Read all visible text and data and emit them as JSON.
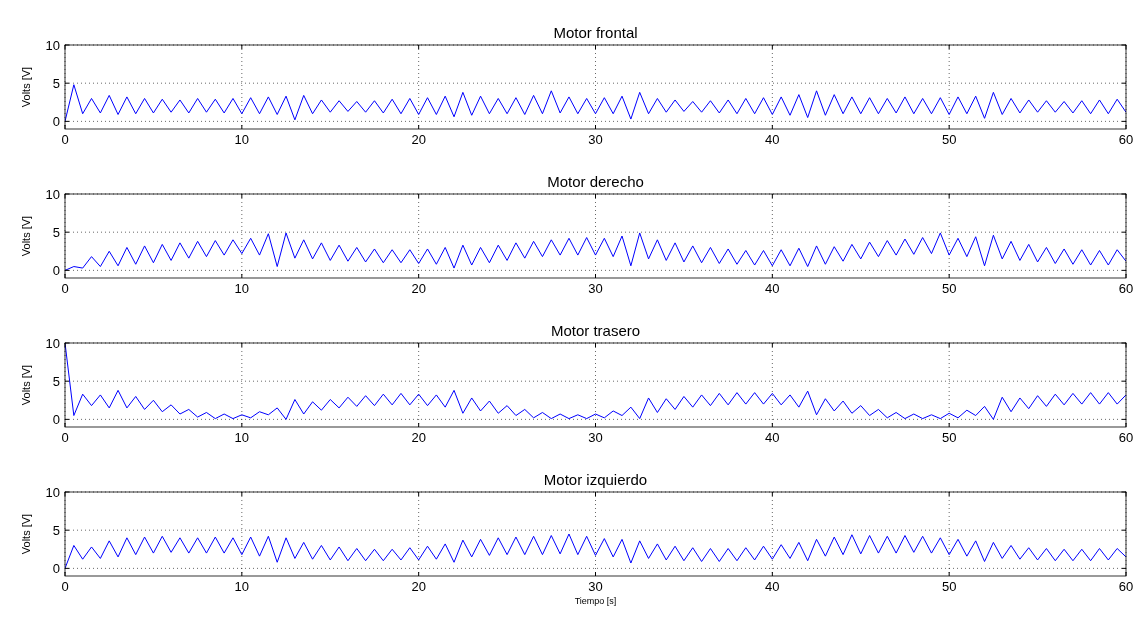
{
  "chart_data": [
    {
      "type": "line",
      "title": "Motor frontal",
      "ylabel": "Volts [V]",
      "xlim": [
        0,
        60
      ],
      "xticks": [
        0,
        10,
        20,
        30,
        40,
        50,
        60
      ],
      "ylim": [
        -1,
        10
      ],
      "yticks": [
        0,
        5,
        10
      ],
      "grid": true,
      "line_style": "solid",
      "x": [
        0,
        0.5,
        1,
        1.5,
        2,
        2.5,
        3,
        3.5,
        4,
        4.5,
        5,
        5.5,
        6,
        6.5,
        7,
        7.5,
        8,
        8.5,
        9,
        9.5,
        10,
        10.5,
        11,
        11.5,
        12,
        12.5,
        13,
        13.5,
        14,
        14.5,
        15,
        15.5,
        16,
        16.5,
        17,
        17.5,
        18,
        18.5,
        19,
        19.5,
        20,
        20.5,
        21,
        21.5,
        22,
        22.5,
        23,
        23.5,
        24,
        24.5,
        25,
        25.5,
        26,
        26.5,
        27,
        27.5,
        28,
        28.5,
        29,
        29.5,
        30,
        30.5,
        31,
        31.5,
        32,
        32.5,
        33,
        33.5,
        34,
        34.5,
        35,
        35.5,
        36,
        36.5,
        37,
        37.5,
        38,
        38.5,
        39,
        39.5,
        40,
        40.5,
        41,
        41.5,
        42,
        42.5,
        43,
        43.5,
        44,
        44.5,
        45,
        45.5,
        46,
        46.5,
        47,
        47.5,
        48,
        48.5,
        49,
        49.5,
        50,
        50.5,
        51,
        51.5,
        52,
        52.5,
        53,
        53.5,
        54,
        54.5,
        55,
        55.5,
        56,
        56.5,
        57,
        57.5,
        58,
        58.5,
        59,
        59.5,
        60
      ],
      "series": [
        {
          "color": "#0000ff",
          "values": [
            0,
            4.8,
            1.0,
            3.0,
            1.1,
            3.4,
            0.9,
            3.2,
            1.0,
            3.0,
            1.1,
            2.9,
            1.2,
            2.8,
            1.1,
            3.0,
            1.2,
            2.9,
            1.1,
            3.0,
            1.0,
            3.1,
            1.0,
            3.2,
            0.9,
            3.3,
            0.2,
            3.4,
            1.0,
            2.8,
            1.2,
            2.7,
            1.3,
            2.6,
            1.2,
            2.7,
            1.1,
            2.9,
            1.0,
            3.0,
            0.9,
            3.1,
            0.9,
            3.3,
            0.6,
            3.8,
            0.8,
            3.3,
            1.0,
            3.0,
            1.0,
            3.1,
            0.9,
            3.4,
            1.0,
            4.0,
            1.1,
            3.2,
            1.0,
            3.0,
            1.0,
            3.1,
            1.0,
            3.3,
            0.3,
            3.8,
            1.0,
            3.0,
            1.2,
            2.8,
            1.3,
            2.6,
            1.2,
            2.7,
            1.1,
            2.8,
            1.0,
            3.0,
            1.0,
            3.1,
            0.9,
            3.2,
            0.8,
            3.5,
            0.5,
            4.0,
            0.8,
            3.5,
            1.0,
            3.2,
            1.0,
            3.1,
            1.0,
            3.0,
            1.1,
            3.2,
            1.0,
            3.0,
            1.0,
            3.1,
            0.9,
            3.2,
            1.0,
            3.3,
            0.4,
            3.8,
            0.9,
            3.0,
            1.1,
            2.8,
            1.2,
            2.7,
            1.2,
            2.6,
            1.1,
            2.7,
            1.0,
            2.8,
            1.0,
            2.9,
            1.2
          ]
        }
      ]
    },
    {
      "type": "line",
      "title": "Motor derecho",
      "ylabel": "Volts [V]",
      "xlim": [
        0,
        60
      ],
      "xticks": [
        0,
        10,
        20,
        30,
        40,
        50,
        60
      ],
      "ylim": [
        -1,
        10
      ],
      "yticks": [
        0,
        5,
        10
      ],
      "grid": true,
      "line_style": "solid",
      "x": [
        0,
        0.5,
        1,
        1.5,
        2,
        2.5,
        3,
        3.5,
        4,
        4.5,
        5,
        5.5,
        6,
        6.5,
        7,
        7.5,
        8,
        8.5,
        9,
        9.5,
        10,
        10.5,
        11,
        11.5,
        12,
        12.5,
        13,
        13.5,
        14,
        14.5,
        15,
        15.5,
        16,
        16.5,
        17,
        17.5,
        18,
        18.5,
        19,
        19.5,
        20,
        20.5,
        21,
        21.5,
        22,
        22.5,
        23,
        23.5,
        24,
        24.5,
        25,
        25.5,
        26,
        26.5,
        27,
        27.5,
        28,
        28.5,
        29,
        29.5,
        30,
        30.5,
        31,
        31.5,
        32,
        32.5,
        33,
        33.5,
        34,
        34.5,
        35,
        35.5,
        36,
        36.5,
        37,
        37.5,
        38,
        38.5,
        39,
        39.5,
        40,
        40.5,
        41,
        41.5,
        42,
        42.5,
        43,
        43.5,
        44,
        44.5,
        45,
        45.5,
        46,
        46.5,
        47,
        47.5,
        48,
        48.5,
        49,
        49.5,
        50,
        50.5,
        51,
        51.5,
        52,
        52.5,
        53,
        53.5,
        54,
        54.5,
        55,
        55.5,
        56,
        56.5,
        57,
        57.5,
        58,
        58.5,
        59,
        59.5,
        60
      ],
      "series": [
        {
          "color": "#0000ff",
          "values": [
            0,
            0.5,
            0.3,
            1.8,
            0.5,
            2.5,
            0.6,
            3.0,
            0.8,
            3.2,
            1.0,
            3.4,
            1.3,
            3.6,
            1.6,
            3.8,
            1.8,
            3.9,
            2.0,
            4.0,
            2.2,
            4.2,
            2.0,
            4.8,
            0.5,
            4.9,
            1.6,
            4.0,
            1.5,
            3.6,
            1.3,
            3.3,
            1.2,
            3.0,
            1.1,
            2.8,
            1.0,
            2.7,
            1.0,
            2.7,
            0.9,
            2.8,
            0.8,
            3.0,
            0.3,
            3.3,
            0.7,
            3.0,
            1.0,
            3.3,
            1.3,
            3.6,
            1.6,
            3.8,
            1.8,
            4.0,
            2.0,
            4.2,
            2.0,
            4.3,
            2.0,
            4.2,
            1.8,
            4.5,
            0.6,
            4.9,
            1.5,
            4.0,
            1.3,
            3.6,
            1.1,
            3.2,
            1.0,
            3.0,
            0.9,
            2.8,
            0.8,
            2.6,
            0.7,
            2.6,
            0.6,
            2.7,
            0.6,
            2.9,
            0.5,
            3.2,
            0.8,
            3.1,
            1.2,
            3.4,
            1.5,
            3.7,
            1.8,
            3.9,
            2.0,
            4.1,
            2.1,
            4.3,
            2.2,
            4.9,
            2.0,
            4.2,
            1.8,
            4.4,
            0.6,
            4.6,
            1.5,
            3.8,
            1.3,
            3.4,
            1.1,
            3.0,
            0.9,
            2.8,
            0.8,
            2.7,
            0.7,
            2.6,
            0.7,
            2.7,
            1.2
          ]
        }
      ]
    },
    {
      "type": "line",
      "title": "Motor trasero",
      "ylabel": "Volts [V]",
      "xlim": [
        0,
        60
      ],
      "xticks": [
        0,
        10,
        20,
        30,
        40,
        50,
        60
      ],
      "ylim": [
        -1,
        10
      ],
      "yticks": [
        0,
        5,
        10
      ],
      "grid": true,
      "line_style": "solid",
      "x": [
        0,
        0.5,
        1,
        1.5,
        2,
        2.5,
        3,
        3.5,
        4,
        4.5,
        5,
        5.5,
        6,
        6.5,
        7,
        7.5,
        8,
        8.5,
        9,
        9.5,
        10,
        10.5,
        11,
        11.5,
        12,
        12.5,
        13,
        13.5,
        14,
        14.5,
        15,
        15.5,
        16,
        16.5,
        17,
        17.5,
        18,
        18.5,
        19,
        19.5,
        20,
        20.5,
        21,
        21.5,
        22,
        22.5,
        23,
        23.5,
        24,
        24.5,
        25,
        25.5,
        26,
        26.5,
        27,
        27.5,
        28,
        28.5,
        29,
        29.5,
        30,
        30.5,
        31,
        31.5,
        32,
        32.5,
        33,
        33.5,
        34,
        34.5,
        35,
        35.5,
        36,
        36.5,
        37,
        37.5,
        38,
        38.5,
        39,
        39.5,
        40,
        40.5,
        41,
        41.5,
        42,
        42.5,
        43,
        43.5,
        44,
        44.5,
        45,
        45.5,
        46,
        46.5,
        47,
        47.5,
        48,
        48.5,
        49,
        49.5,
        50,
        50.5,
        51,
        51.5,
        52,
        52.5,
        53,
        53.5,
        54,
        54.5,
        55,
        55.5,
        56,
        56.5,
        57,
        57.5,
        58,
        58.5,
        59,
        59.5,
        60
      ],
      "series": [
        {
          "color": "#0000ff",
          "values": [
            10,
            0.5,
            3.3,
            1.8,
            3.2,
            1.5,
            3.8,
            1.5,
            3.0,
            1.3,
            2.5,
            1.0,
            1.9,
            0.7,
            1.3,
            0.3,
            0.9,
            0.1,
            0.7,
            0.1,
            0.6,
            0.2,
            1.0,
            0.6,
            1.5,
            0.0,
            2.6,
            0.7,
            2.3,
            1.2,
            2.6,
            1.5,
            2.9,
            1.7,
            3.1,
            1.8,
            3.3,
            1.9,
            3.4,
            1.9,
            3.3,
            1.8,
            3.2,
            1.6,
            3.8,
            0.8,
            2.8,
            1.1,
            2.4,
            0.8,
            1.8,
            0.5,
            1.3,
            0.2,
            0.9,
            0.1,
            0.7,
            0.1,
            0.6,
            0.1,
            0.7,
            0.2,
            1.1,
            0.5,
            1.6,
            0.1,
            2.8,
            0.9,
            2.7,
            1.3,
            3.0,
            1.6,
            3.2,
            1.8,
            3.4,
            1.9,
            3.5,
            2.0,
            3.5,
            2.0,
            3.4,
            1.9,
            3.2,
            1.6,
            3.7,
            0.6,
            2.7,
            1.1,
            2.4,
            0.8,
            1.8,
            0.5,
            1.3,
            0.2,
            0.9,
            0.1,
            0.7,
            0.1,
            0.6,
            0.1,
            0.8,
            0.2,
            1.2,
            0.5,
            1.7,
            0.0,
            2.9,
            1.0,
            2.8,
            1.4,
            3.1,
            1.7,
            3.3,
            1.9,
            3.4,
            2.0,
            3.5,
            2.0,
            3.5,
            2.0,
            3.2
          ]
        }
      ]
    },
    {
      "type": "line",
      "title": "Motor izquierdo",
      "ylabel": "Volts [V]",
      "xlabel": "Tiempo [s]",
      "xlim": [
        0,
        60
      ],
      "xticks": [
        0,
        10,
        20,
        30,
        40,
        50,
        60
      ],
      "ylim": [
        -1,
        10
      ],
      "yticks": [
        0,
        5,
        10
      ],
      "grid": true,
      "line_style": "solid",
      "x": [
        0,
        0.5,
        1,
        1.5,
        2,
        2.5,
        3,
        3.5,
        4,
        4.5,
        5,
        5.5,
        6,
        6.5,
        7,
        7.5,
        8,
        8.5,
        9,
        9.5,
        10,
        10.5,
        11,
        11.5,
        12,
        12.5,
        13,
        13.5,
        14,
        14.5,
        15,
        15.5,
        16,
        16.5,
        17,
        17.5,
        18,
        18.5,
        19,
        19.5,
        20,
        20.5,
        21,
        21.5,
        22,
        22.5,
        23,
        23.5,
        24,
        24.5,
        25,
        25.5,
        26,
        26.5,
        27,
        27.5,
        28,
        28.5,
        29,
        29.5,
        30,
        30.5,
        31,
        31.5,
        32,
        32.5,
        33,
        33.5,
        34,
        34.5,
        35,
        35.5,
        36,
        36.5,
        37,
        37.5,
        38,
        38.5,
        39,
        39.5,
        40,
        40.5,
        41,
        41.5,
        42,
        42.5,
        43,
        43.5,
        44,
        44.5,
        45,
        45.5,
        46,
        46.5,
        47,
        47.5,
        48,
        48.5,
        49,
        49.5,
        50,
        50.5,
        51,
        51.5,
        52,
        52.5,
        53,
        53.5,
        54,
        54.5,
        55,
        55.5,
        56,
        56.5,
        57,
        57.5,
        58,
        58.5,
        59,
        59.5,
        60
      ],
      "series": [
        {
          "color": "#0000ff",
          "values": [
            0,
            3.0,
            1.2,
            2.8,
            1.3,
            3.6,
            1.5,
            4.0,
            1.8,
            4.1,
            2.0,
            4.2,
            2.1,
            4.0,
            2.0,
            4.0,
            2.0,
            4.1,
            2.0,
            4.0,
            1.8,
            4.1,
            1.6,
            4.2,
            0.8,
            4.0,
            1.3,
            3.4,
            1.2,
            3.0,
            1.1,
            2.8,
            1.0,
            2.6,
            1.0,
            2.5,
            1.0,
            2.5,
            1.1,
            2.7,
            1.1,
            2.9,
            1.2,
            3.2,
            0.8,
            3.7,
            1.5,
            3.8,
            1.7,
            4.0,
            1.8,
            4.1,
            1.8,
            4.2,
            1.8,
            4.3,
            1.9,
            4.5,
            1.8,
            4.2,
            1.7,
            3.9,
            1.5,
            3.8,
            0.7,
            3.6,
            1.3,
            3.2,
            1.1,
            2.9,
            1.0,
            2.7,
            0.9,
            2.6,
            0.9,
            2.6,
            1.0,
            2.7,
            1.1,
            2.9,
            1.2,
            3.1,
            1.3,
            3.4,
            1.0,
            3.8,
            1.6,
            4.1,
            1.8,
            4.4,
            1.9,
            4.3,
            2.0,
            4.2,
            2.0,
            4.3,
            2.1,
            4.2,
            2.0,
            4.0,
            1.8,
            3.8,
            1.6,
            3.6,
            0.9,
            3.4,
            1.3,
            3.0,
            1.2,
            2.7,
            1.1,
            2.6,
            1.0,
            2.5,
            1.0,
            2.5,
            1.0,
            2.6,
            1.1,
            2.6,
            1.5
          ]
        }
      ]
    }
  ]
}
